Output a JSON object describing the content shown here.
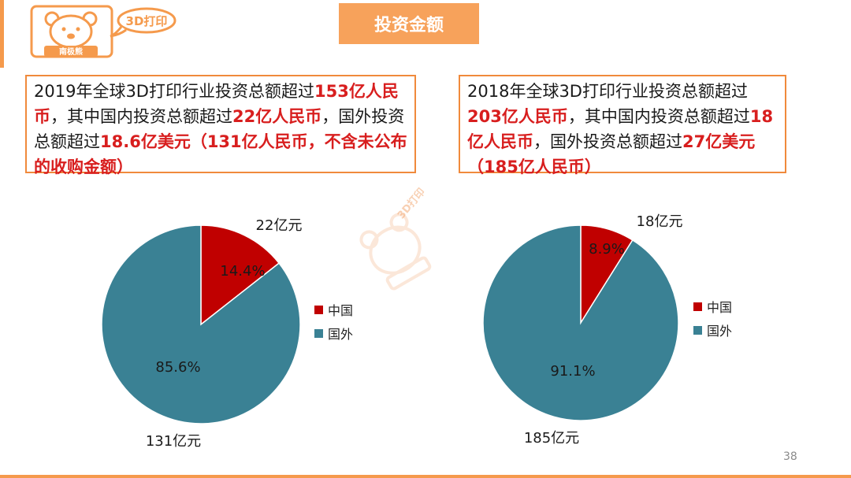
{
  "logo": {
    "badge_text": "3D打印",
    "brand_text": "南极熊"
  },
  "title": "投资金额",
  "box_left": {
    "p1": "2019年全球3D打印行业投资总额超过",
    "h1": "153亿人民币",
    "p2": "，其中国内投资总额超过",
    "h2": "22亿人民币",
    "p3": "，国外投资总额超过",
    "h3": "18.6亿美元（131亿人民币，不含未公布的收购金额）"
  },
  "box_right": {
    "p1": "2018年全球3D打印行业投资总额超过",
    "h1": "203亿人民币",
    "p2": "，其中国内投资总额超过",
    "h2": "18亿人民币",
    "p3": "，国外投资总额超过",
    "h3": "27亿美元（185亿人民币）"
  },
  "watermark_text": "3D打印",
  "colors": {
    "domestic": "#c00000",
    "foreign": "#3a8194",
    "accent": "#f59a4c"
  },
  "chart_data": [
    {
      "type": "pie",
      "categories": [
        "中国",
        "国外"
      ],
      "values": [
        14.4,
        85.6
      ],
      "percent_labels": [
        "14.4%",
        "85.6%"
      ],
      "value_labels": [
        "22亿元",
        "131亿元"
      ],
      "legend": [
        "中国",
        "国外"
      ],
      "legend_position": "right"
    },
    {
      "type": "pie",
      "categories": [
        "中国",
        "国外"
      ],
      "values": [
        8.9,
        91.1
      ],
      "percent_labels": [
        "8.9%",
        "91.1%"
      ],
      "value_labels": [
        "18亿元",
        "185亿元"
      ],
      "legend": [
        "中国",
        "国外"
      ],
      "legend_position": "right"
    }
  ],
  "page_number": "38"
}
